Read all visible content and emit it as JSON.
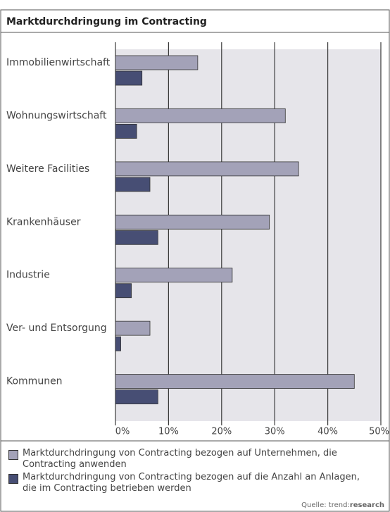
{
  "chart_data": {
    "type": "bar",
    "orientation": "horizontal",
    "title": "Marktdurchdringung im Contracting",
    "categories": [
      "Immobilienwirtschaft",
      "Wohnungswirtschaft",
      "Weitere Facilities",
      "Krankenhäuser",
      "Industrie",
      "Ver- und Entsorgung",
      "Kommunen"
    ],
    "series": [
      {
        "name": "Marktdurchdringung von Contracting bezogen auf Unternehmen, die Contracting anwenden",
        "color": "#a3a2b8",
        "values": [
          15.5,
          32,
          34.5,
          29,
          22,
          6.5,
          45
        ]
      },
      {
        "name": "Marktdurchdringung von Contracting bezogen auf die Anzahl an Anlagen, die im Contracting betrieben werden",
        "color": "#474e74",
        "values": [
          5,
          4,
          6.5,
          8,
          3,
          1,
          8
        ]
      }
    ],
    "xlim": [
      0,
      50
    ],
    "xticks": [
      {
        "value": 0,
        "label": "0%"
      },
      {
        "value": 10,
        "label": "10%"
      },
      {
        "value": 20,
        "label": "20%"
      },
      {
        "value": 30,
        "label": "30%"
      },
      {
        "value": 40,
        "label": "40%"
      },
      {
        "value": 50,
        "label": "50%"
      }
    ],
    "grid": true,
    "source": {
      "prefix": "Quelle: trend:",
      "bold": "research"
    }
  }
}
